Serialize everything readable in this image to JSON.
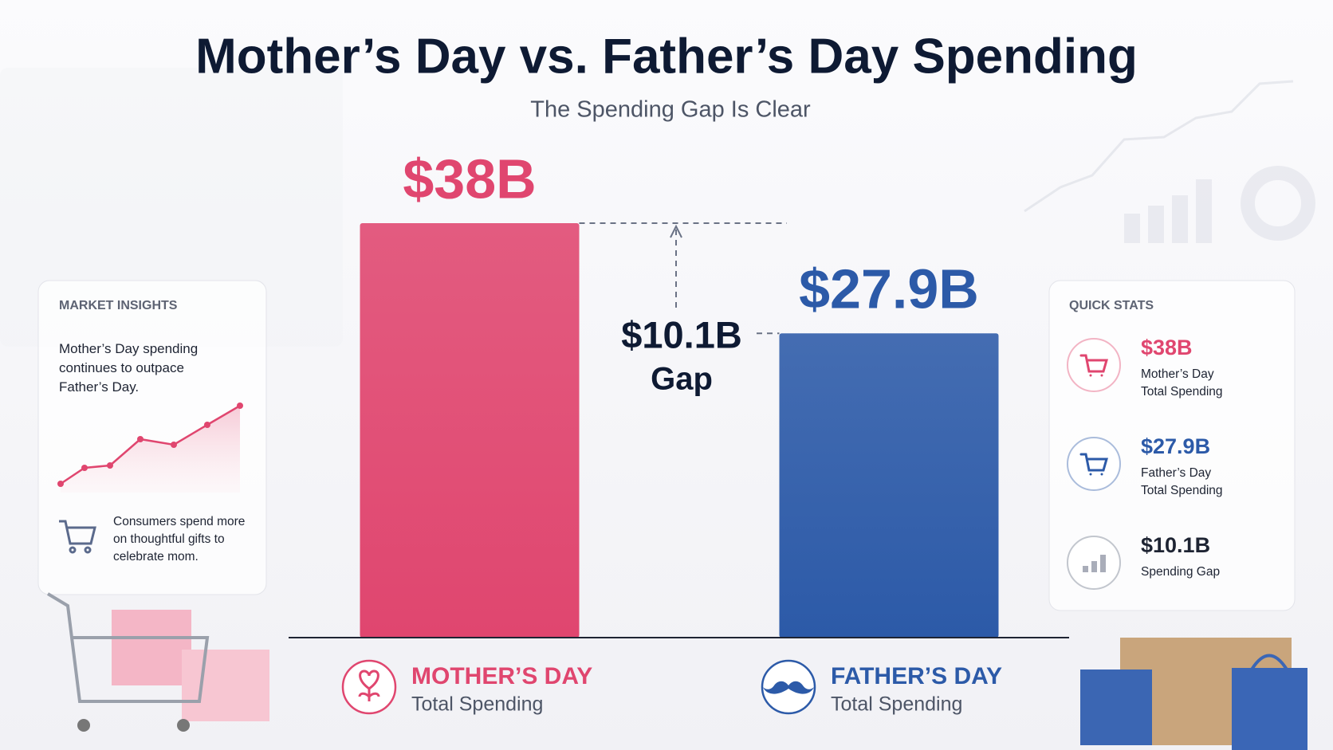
{
  "chart_data": {
    "type": "bar",
    "title": "Mother’s Day vs. Father’s Day Spending",
    "subtitle": "The Spending Gap Is Clear",
    "categories": [
      "MOTHER’S DAY",
      "FATHER’S DAY"
    ],
    "category_subtitles": [
      "Total Spending",
      "Total Spending"
    ],
    "values": [
      38,
      27.9
    ],
    "value_labels": [
      "$38B",
      "$27.9B"
    ],
    "colors": [
      "#e0466f",
      "#2c5aa8"
    ],
    "gap_label": "$10.1B",
    "gap_text": "Gap"
  },
  "market_insights": {
    "title": "MARKET INSIGHTS",
    "text": "Mother’s Day spending continues to outpace Father’s Day.",
    "note": "Consumers spend more on thoughtful gifts to celebrate mom."
  },
  "quick_stats": {
    "title": "QUICK STATS",
    "items": [
      {
        "value": "$38B",
        "lines": [
          "Mother’s Day",
          "Total Spending"
        ]
      },
      {
        "value": "$27.9B",
        "lines": [
          "Father’s Day",
          "Total Spending"
        ]
      },
      {
        "value": "$10.1B",
        "lines": [
          "Spending Gap"
        ]
      }
    ]
  }
}
